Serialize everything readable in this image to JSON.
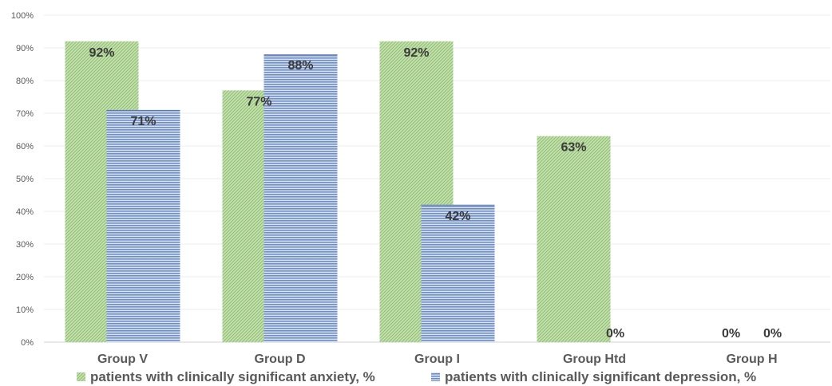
{
  "chart_data": {
    "type": "bar",
    "categories": [
      "Group V",
      "Group D",
      "Group I",
      "Group Htd",
      "Group H"
    ],
    "series": [
      {
        "name": "patients with clinically significant anxiety, %",
        "values": [
          92,
          77,
          92,
          63,
          0
        ],
        "labels": [
          "92%",
          "77%",
          "92%",
          "63%",
          "0%"
        ],
        "color": "#a9d18e"
      },
      {
        "name": "patients with clinically significant depression, %",
        "values": [
          71,
          88,
          42,
          0,
          0
        ],
        "labels": [
          "71%",
          "88%",
          "42%",
          "0%",
          "0%"
        ],
        "color": "#8faadc"
      }
    ],
    "ylim": [
      0,
      100
    ],
    "yticks": [
      "0%",
      "10%",
      "20%",
      "30%",
      "40%",
      "50%",
      "60%",
      "70%",
      "80%",
      "90%",
      "100%"
    ],
    "grid": true,
    "legend_position": "bottom"
  }
}
